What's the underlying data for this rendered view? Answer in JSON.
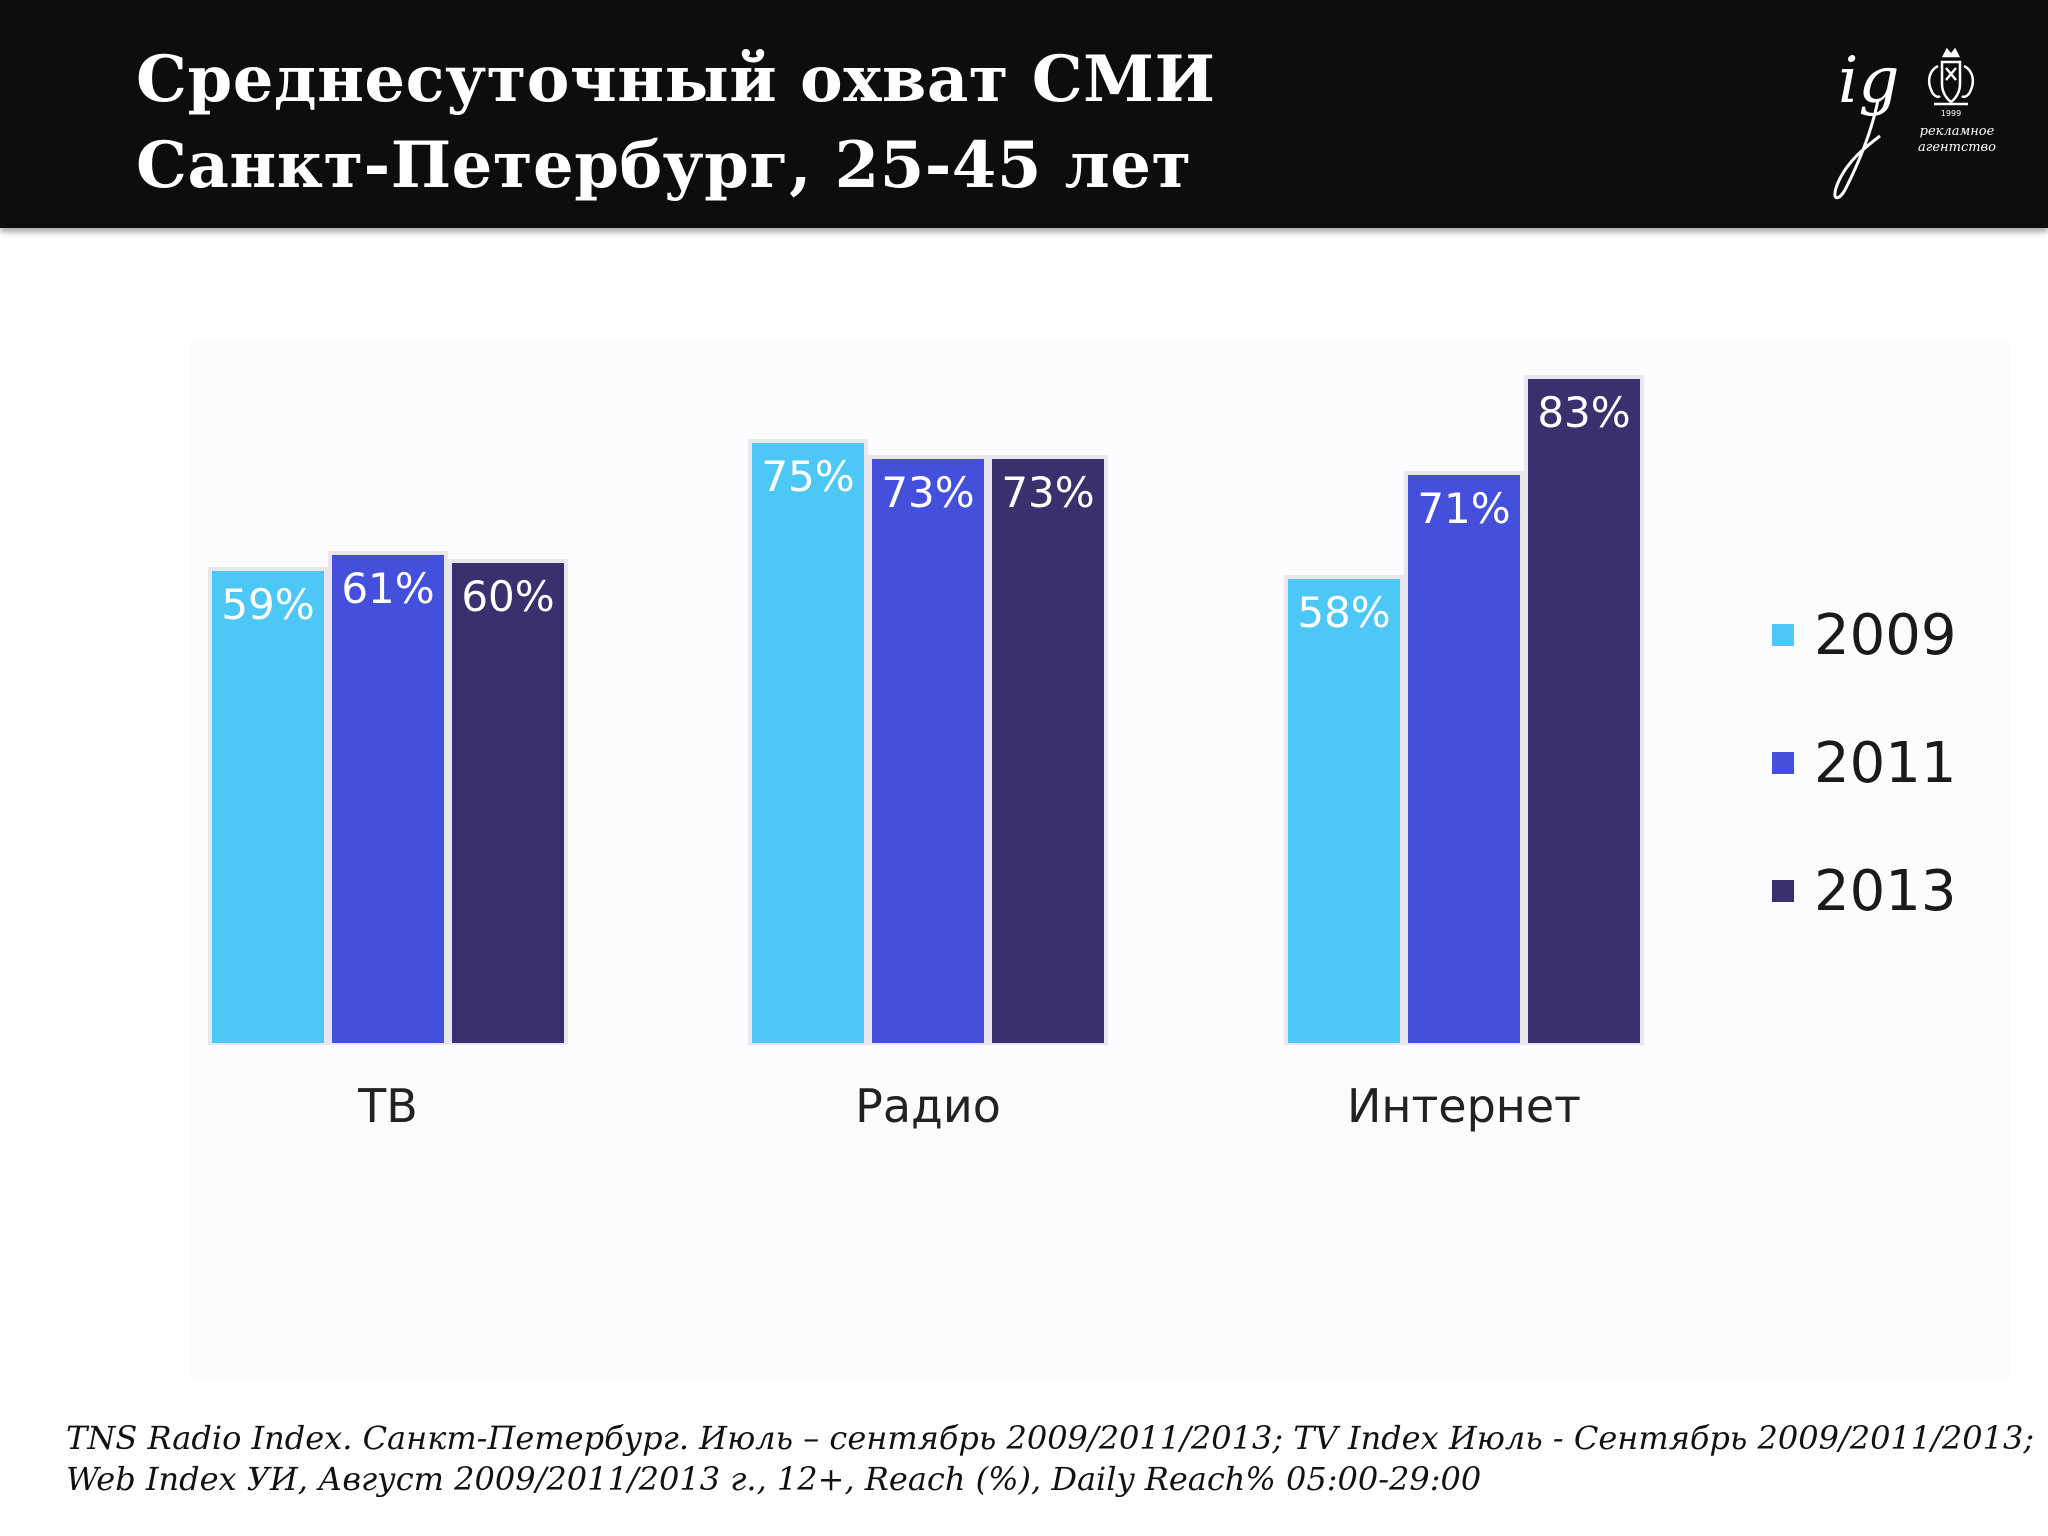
{
  "header": {
    "title_line_1": "Среднесуточный охват СМИ",
    "title_line_2": "Санкт-Петербург, 25-45 лет",
    "logo": {
      "mark": "ig",
      "year": "1999",
      "caption_line_1": "рекламное",
      "caption_line_2": "агентство"
    }
  },
  "chart_data": {
    "type": "bar",
    "categories": [
      "ТВ",
      "Радио",
      "Интернет"
    ],
    "series": [
      {
        "name": "2009",
        "values": [
          59,
          75,
          58
        ],
        "labels": [
          "59%",
          "75%",
          "58%"
        ],
        "color": "#4dc8f6"
      },
      {
        "name": "2011",
        "values": [
          61,
          73,
          71
        ],
        "labels": [
          "61%",
          "73%",
          "71%"
        ],
        "color": "#4450db"
      },
      {
        "name": "2013",
        "values": [
          60,
          73,
          83
        ],
        "labels": [
          "60%",
          "73%",
          "83%"
        ],
        "color": "#3c2f6e"
      }
    ],
    "unit": "%",
    "ylim": [
      0,
      100
    ],
    "grid": false,
    "legend_position": "right"
  },
  "footnote": {
    "line_1": "TNS Radio Index. Санкт-Петербург. Июль – сентябрь 2009/2011/2013; TV Index Июль - Сентябрь 2009/2011/2013;",
    "line_2": "Web Index УИ, Август 2009/2011/2013 г., 12+, Reach (%), Daily Reach% 05:00-29:00"
  }
}
